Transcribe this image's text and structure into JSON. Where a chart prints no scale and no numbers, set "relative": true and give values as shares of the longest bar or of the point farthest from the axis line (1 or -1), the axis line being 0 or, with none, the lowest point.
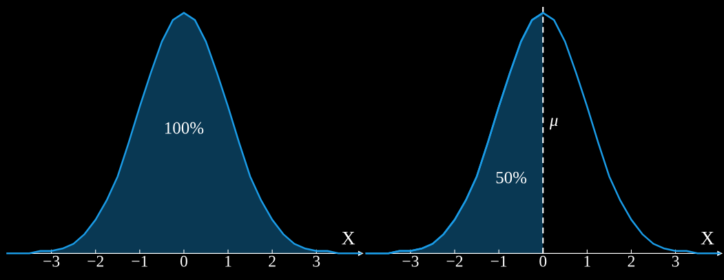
{
  "chart_data": [
    {
      "type": "area",
      "relative": true,
      "xlabel": "X",
      "xlim": [
        -4,
        4
      ],
      "xticks": [
        {
          "value": -3,
          "label": "−3"
        },
        {
          "value": -2,
          "label": "−2"
        },
        {
          "value": -1,
          "label": "−1"
        },
        0,
        1,
        2,
        3
      ],
      "series": [
        {
          "type": "area",
          "color": "#1a9be6",
          "x": [
            -4,
            -3.75,
            -3.5,
            -3.25,
            -3,
            -2.75,
            -2.5,
            -2.25,
            -2,
            -1.75,
            -1.5,
            -1.25,
            -1,
            -0.75,
            -0.5,
            -0.25,
            0,
            0.25,
            0.5,
            0.75,
            1,
            1.25,
            1.5,
            1.75,
            2,
            2.25,
            2.5,
            2.75,
            3,
            3.25,
            3.5,
            3.75,
            4
          ],
          "values": [
            0,
            0,
            0,
            0.01,
            0.01,
            0.02,
            0.04,
            0.08,
            0.14,
            0.22,
            0.32,
            0.46,
            0.61,
            0.75,
            0.88,
            0.97,
            1,
            0.97,
            0.88,
            0.75,
            0.61,
            0.46,
            0.32,
            0.22,
            0.14,
            0.08,
            0.04,
            0.02,
            0.01,
            0.01,
            0,
            0,
            0
          ]
        }
      ],
      "annotations": [
        "100%"
      ]
    },
    {
      "type": "area",
      "relative": true,
      "xlabel": "X",
      "xlim": [
        -4,
        4
      ],
      "xticks": [
        {
          "value": -3,
          "label": "−3"
        },
        {
          "value": -2,
          "label": "−2"
        },
        {
          "value": -1,
          "label": "−1"
        },
        0,
        1,
        2,
        3
      ],
      "series": [
        {
          "type": "area",
          "color": "#1a9be6",
          "x": [
            -4,
            -3.75,
            -3.5,
            -3.25,
            -3,
            -2.75,
            -2.5,
            -2.25,
            -2,
            -1.75,
            -1.5,
            -1.25,
            -1,
            -0.75,
            -0.5,
            -0.25,
            0
          ],
          "values": [
            0,
            0,
            0,
            0.01,
            0.01,
            0.02,
            0.04,
            0.08,
            0.14,
            0.22,
            0.32,
            0.46,
            0.61,
            0.75,
            0.88,
            0.97,
            1
          ]
        },
        {
          "type": "line",
          "color": "#1a9be6",
          "x": [
            -4,
            -3.75,
            -3.5,
            -3.25,
            -3,
            -2.75,
            -2.5,
            -2.25,
            -2,
            -1.75,
            -1.5,
            -1.25,
            -1,
            -0.75,
            -0.5,
            -0.25,
            0,
            0.25,
            0.5,
            0.75,
            1,
            1.25,
            1.5,
            1.75,
            2,
            2.25,
            2.5,
            2.75,
            3,
            3.25,
            3.5,
            3.75,
            4
          ],
          "values": [
            0,
            0,
            0,
            0.01,
            0.01,
            0.02,
            0.04,
            0.08,
            0.14,
            0.22,
            0.32,
            0.46,
            0.61,
            0.75,
            0.88,
            0.97,
            1,
            0.97,
            0.88,
            0.75,
            0.61,
            0.46,
            0.32,
            0.22,
            0.14,
            0.08,
            0.04,
            0.02,
            0.01,
            0.01,
            0,
            0,
            0
          ]
        }
      ],
      "ref_lines": [
        {
          "axis": "x",
          "value": 0,
          "label": "μ",
          "color": "#ffffff",
          "line_style": "dashed"
        }
      ],
      "annotations": [
        "50%"
      ]
    }
  ]
}
